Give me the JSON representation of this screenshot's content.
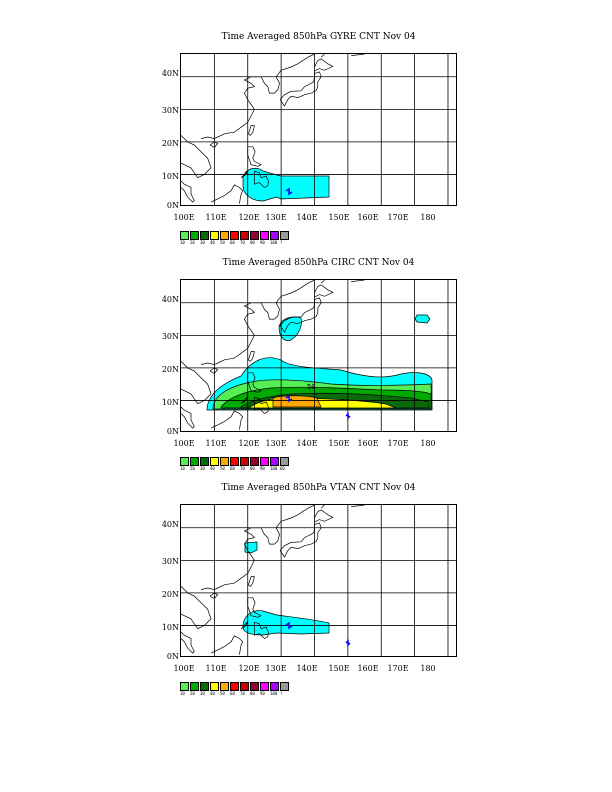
{
  "panels": [
    {
      "title": "Time Averaged 850hPa GYRE CNT Nov 04",
      "legend_labels": [
        "10",
        "20",
        "30",
        "40",
        "50",
        "60",
        "70",
        "80",
        "90",
        "100",
        "?"
      ]
    },
    {
      "title": "Time Averaged 850hPa CIRC CNT Nov 04",
      "legend_labels": [
        "10",
        "20",
        "30",
        "40",
        "50",
        "60",
        "70",
        "80",
        "90",
        "100",
        "60"
      ]
    },
    {
      "title": "Time Averaged 850hPa VTAN CNT Nov 04",
      "legend_labels": [
        "10",
        "20",
        "30",
        "40",
        "50",
        "60",
        "70",
        "80",
        "90",
        "100",
        "?"
      ]
    }
  ],
  "lat_labels": [
    "40N",
    "30N",
    "20N",
    "10N",
    "0N"
  ],
  "lon_labels": [
    "100E",
    "110E",
    "120E",
    "130E",
    "140E",
    "150E",
    "160E",
    "170E",
    "180"
  ],
  "map_extent": {
    "lon": [
      100,
      183
    ],
    "lat": [
      0,
      47
    ]
  },
  "legend_colors": [
    "#55ee55",
    "#00aa00",
    "#0b6b0b",
    "#ffff00",
    "#ffaa00",
    "#ff0000",
    "#cc0000",
    "#990033",
    "#ff00ff",
    "#aa00ff",
    "#999999"
  ],
  "contour_label": "50"
}
